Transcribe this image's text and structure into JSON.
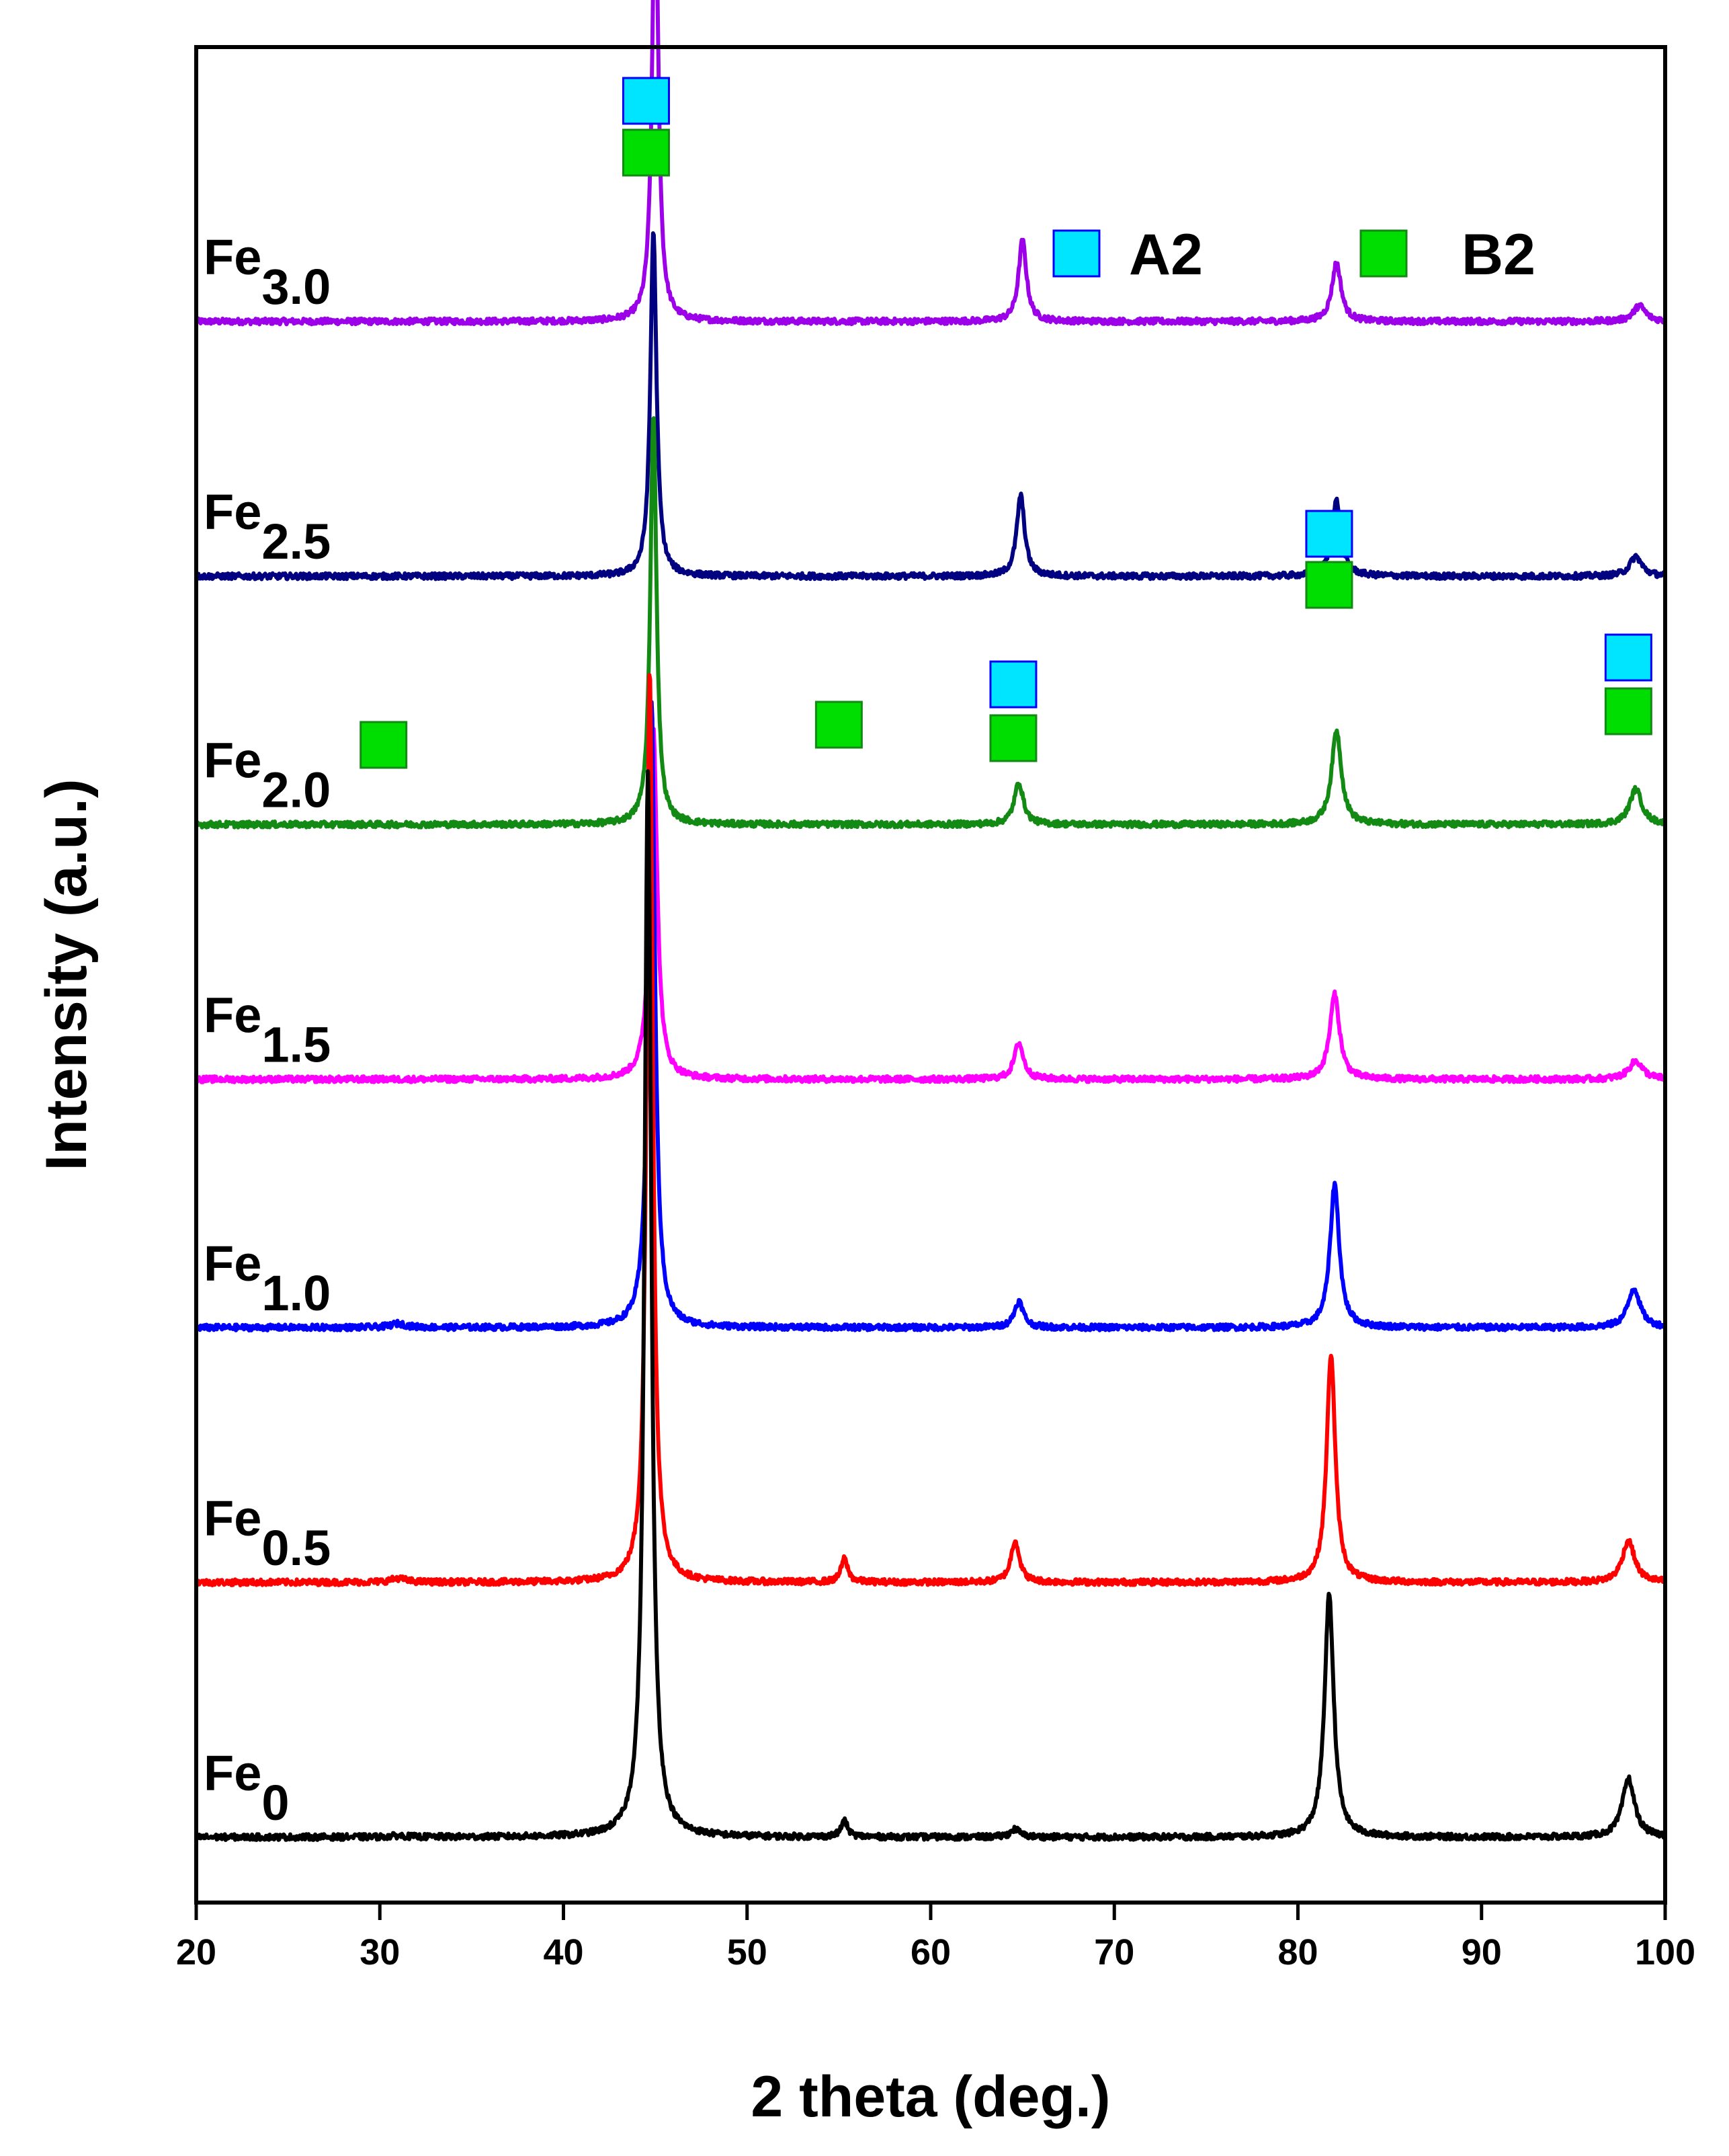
{
  "chart_data": {
    "type": "line",
    "xlabel": "2 theta (deg.)",
    "ylabel": "Intensity (a.u.)",
    "xlim": [
      20,
      100
    ],
    "xticks": [
      20,
      30,
      40,
      50,
      60,
      70,
      80,
      90,
      100
    ],
    "y_axis": "stacked offsets, arbitrary units (no tick values)",
    "legend": [
      {
        "name": "A2",
        "color": "#00e5ff"
      },
      {
        "name": "B2",
        "color": "#00dd00"
      }
    ],
    "series": [
      {
        "name": "Fe0",
        "label_main": "Fe",
        "label_sub": "0",
        "color": "#000000",
        "baseline": 0.5,
        "peaks": [
          [
            31.0,
            0.01,
            0.5
          ],
          [
            44.6,
            8.15,
            0.22
          ],
          [
            55.3,
            0.12,
            0.22
          ],
          [
            64.6,
            0.06,
            0.3
          ],
          [
            81.7,
            1.85,
            0.3
          ],
          [
            98.0,
            0.45,
            0.4
          ]
        ]
      },
      {
        "name": "Fe0.5",
        "label_main": "Fe",
        "label_sub": "0.5",
        "color": "#ff0000",
        "baseline": 2.45,
        "peaks": [
          [
            31.0,
            0.03,
            0.5
          ],
          [
            44.7,
            7.0,
            0.2
          ],
          [
            55.3,
            0.18,
            0.22
          ],
          [
            64.6,
            0.32,
            0.28
          ],
          [
            81.8,
            1.75,
            0.28
          ],
          [
            98.0,
            0.32,
            0.4
          ]
        ]
      },
      {
        "name": "Fe1.0",
        "label_main": "Fe",
        "label_sub": "1.0",
        "color": "#0000ff",
        "baseline": 4.4,
        "peaks": [
          [
            31.0,
            0.03,
            0.5
          ],
          [
            44.8,
            4.8,
            0.22
          ],
          [
            64.8,
            0.2,
            0.3
          ],
          [
            82.0,
            1.1,
            0.3
          ],
          [
            98.3,
            0.3,
            0.4
          ]
        ]
      },
      {
        "name": "Fe1.5",
        "label_main": "Fe",
        "label_sub": "1.5",
        "color": "#ff00ff",
        "baseline": 6.3,
        "peaks": [
          [
            44.9,
            2.7,
            0.24
          ],
          [
            64.8,
            0.28,
            0.3
          ],
          [
            82.0,
            0.65,
            0.32
          ],
          [
            98.4,
            0.14,
            0.45
          ]
        ]
      },
      {
        "name": "Fe2.0",
        "label_main": "Fe",
        "label_sub": "2.0",
        "color": "#138a13",
        "baseline": 8.25,
        "peaks": [
          [
            44.9,
            3.15,
            0.2
          ],
          [
            64.8,
            0.32,
            0.3
          ],
          [
            82.1,
            0.72,
            0.32
          ],
          [
            98.4,
            0.27,
            0.4
          ]
        ]
      },
      {
        "name": "Fe2.5",
        "label_main": "Fe",
        "label_sub": "2.5",
        "color": "#000080",
        "baseline": 10.15,
        "peaks": [
          [
            44.9,
            2.65,
            0.2
          ],
          [
            64.9,
            0.62,
            0.26
          ],
          [
            82.1,
            0.58,
            0.3
          ],
          [
            98.4,
            0.15,
            0.4
          ]
        ]
      },
      {
        "name": "Fe3.0",
        "label_main": "Fe",
        "label_sub": "3.0",
        "color": "#9b00e8",
        "baseline": 12.1,
        "peaks": [
          [
            45.0,
            3.45,
            0.2
          ],
          [
            65.0,
            0.62,
            0.26
          ],
          [
            82.1,
            0.45,
            0.3
          ],
          [
            98.6,
            0.12,
            0.4
          ]
        ]
      }
    ],
    "annotations": [
      {
        "x": 30.2,
        "phases": [
          "B2"
        ]
      },
      {
        "x": 44.5,
        "phases": [
          "A2",
          "B2"
        ]
      },
      {
        "x": 55.0,
        "phases": [
          "B2"
        ]
      },
      {
        "x": 64.5,
        "phases": [
          "A2",
          "B2"
        ]
      },
      {
        "x": 81.7,
        "phases": [
          "A2",
          "B2"
        ]
      },
      {
        "x": 98.0,
        "phases": [
          "A2",
          "B2"
        ]
      }
    ]
  }
}
